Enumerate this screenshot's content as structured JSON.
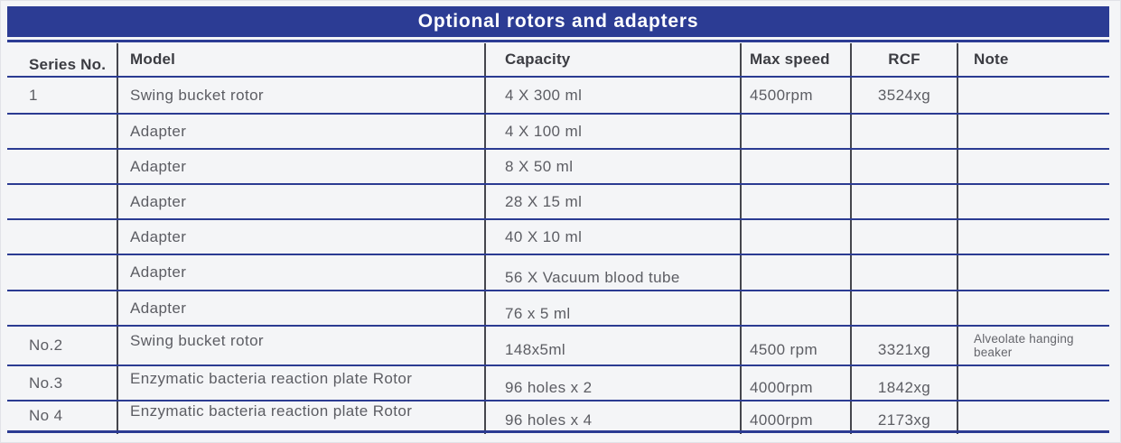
{
  "title": "Optional rotors and adapters",
  "colors": {
    "banner_blue": "#2c3c94",
    "rule_blue": "#2b3b92",
    "divider_gray": "#45464d",
    "page_background": "#f4f5f7",
    "header_text": "#3b3c42",
    "body_text": "#5c5d63"
  },
  "table": {
    "headers": [
      "Series No.",
      "Model",
      "Capacity",
      "Max speed",
      "RCF",
      "Note"
    ],
    "rows": [
      {
        "series": "1",
        "model": "Swing bucket rotor",
        "capacity": "4 X 300 ml",
        "max_speed": "4500rpm",
        "rcf": "3524xg",
        "note": ""
      },
      {
        "series": "",
        "model": "Adapter",
        "capacity": "4 X 100 ml",
        "max_speed": "",
        "rcf": "",
        "note": ""
      },
      {
        "series": "",
        "model": "Adapter",
        "capacity": "8 X 50 ml",
        "max_speed": "",
        "rcf": "",
        "note": ""
      },
      {
        "series": "",
        "model": "Adapter",
        "capacity": "28 X 15 ml",
        "max_speed": "",
        "rcf": "",
        "note": ""
      },
      {
        "series": "",
        "model": "Adapter",
        "capacity": "40 X 10 ml",
        "max_speed": "",
        "rcf": "",
        "note": ""
      },
      {
        "series": "",
        "model": "Adapter",
        "capacity": "56 X Vacuum blood tube",
        "max_speed": "",
        "rcf": "",
        "note": ""
      },
      {
        "series": "",
        "model": "Adapter",
        "capacity": "76 x 5 ml",
        "max_speed": "",
        "rcf": "",
        "note": ""
      },
      {
        "series": "No.2",
        "model": "Swing bucket rotor",
        "capacity": "148x5ml",
        "max_speed": "4500 rpm",
        "rcf": "3321xg",
        "note": "Alveolate hanging beaker"
      },
      {
        "series": "No.3",
        "model": "Enzymatic bacteria reaction plate Rotor",
        "capacity": "96 holes x 2",
        "max_speed": "4000rpm",
        "rcf": "1842xg",
        "note": ""
      },
      {
        "series": "No 4",
        "model": "Enzymatic bacteria reaction plate Rotor",
        "capacity": "96 holes x 4",
        "max_speed": "4000rpm",
        "rcf": "2173xg",
        "note": ""
      }
    ]
  }
}
